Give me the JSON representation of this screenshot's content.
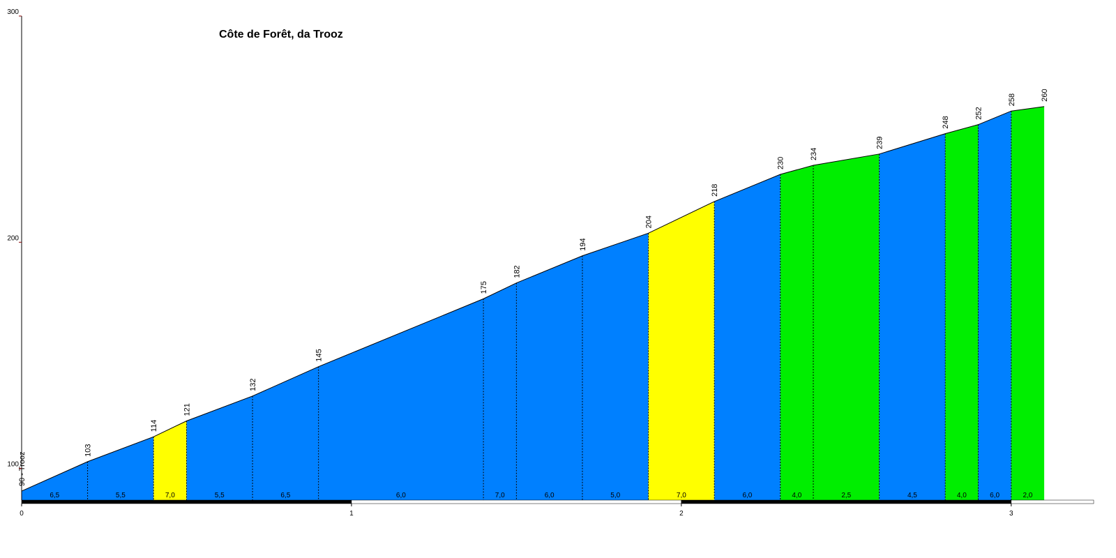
{
  "chart_data": {
    "type": "climb-profile",
    "title": "Côte de Forêt, da Trooz",
    "x": [
      0,
      0.2,
      0.4,
      0.5,
      0.7,
      0.9,
      1.4,
      1.5,
      1.7,
      1.9,
      2.1,
      2.3,
      2.4,
      2.6,
      2.8,
      2.9,
      3.0,
      3.1
    ],
    "values": [
      90,
      103,
      114,
      121,
      132,
      145,
      175,
      182,
      194,
      204,
      218,
      230,
      234,
      239,
      248,
      252,
      258,
      260
    ],
    "value_labels": [
      "90 - Trooz",
      "103",
      "114",
      "121",
      "132",
      "145",
      "175",
      "182",
      "194",
      "204",
      "218",
      "230",
      "234",
      "239",
      "248",
      "252",
      "258",
      "260"
    ],
    "segment_labels": [
      "6,5",
      "5,5",
      "7,0",
      "5,5",
      "6,5",
      "6,0",
      "7,0",
      "6,0",
      "5,0",
      "7,0",
      "6,0",
      "4,0",
      "2,5",
      "4,5",
      "4,0",
      "6,0",
      "2,0"
    ],
    "segment_colors": [
      "#0080ff",
      "#0080ff",
      "#ffff00",
      "#0080ff",
      "#0080ff",
      "#0080ff",
      "#0080ff",
      "#0080ff",
      "#0080ff",
      "#ffff00",
      "#0080ff",
      "#00ee00",
      "#00ee00",
      "#0080ff",
      "#00ee00",
      "#0080ff",
      "#00ee00"
    ],
    "xlim": [
      0,
      3.25
    ],
    "xticks": [
      0,
      1,
      2,
      3
    ],
    "ylim": [
      86,
      300
    ],
    "yticks": [
      100,
      200,
      300
    ]
  }
}
